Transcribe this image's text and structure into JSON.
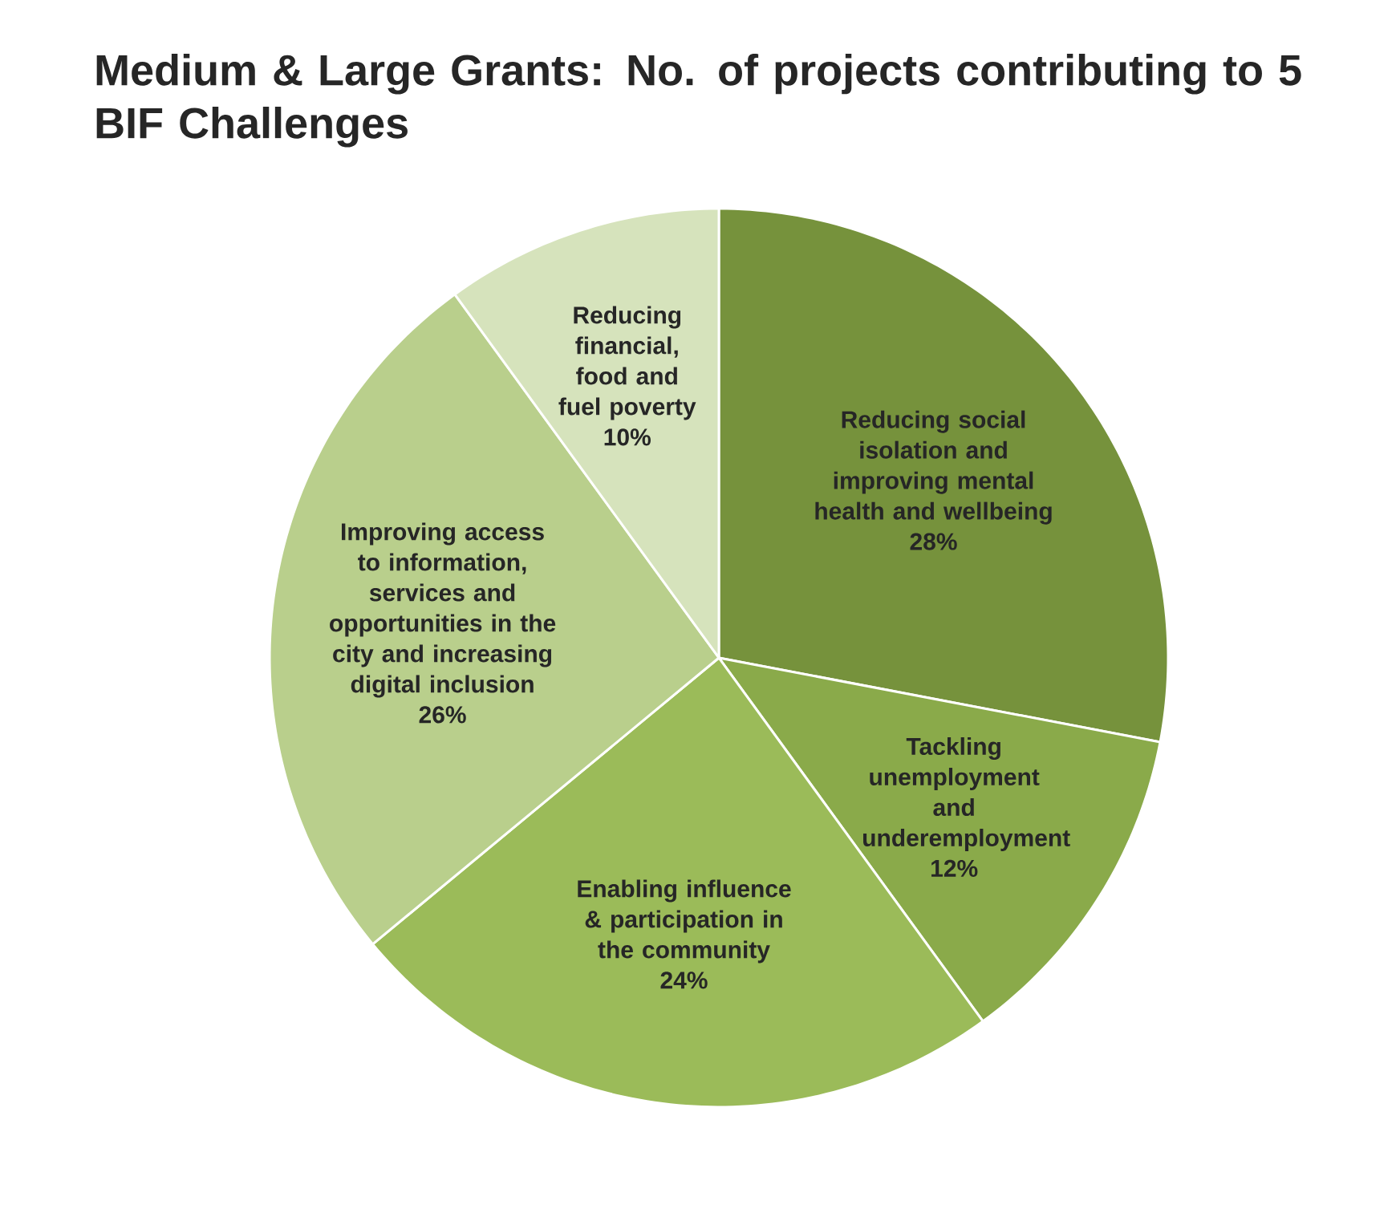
{
  "chart_data": {
    "type": "pie",
    "title": "Medium & Large Grants: No. of projects contributing to 5 BIF Challenges",
    "categories": [
      "Reducing social isolation and improving mental health and wellbeing",
      "Tackling unemployment and underemployment",
      "Enabling influence & participation in the community",
      "Improving access to information, services and opportunities in the city and increasing digital inclusion",
      "Reducing financial, food and fuel poverty"
    ],
    "values": [
      28,
      12,
      24,
      26,
      10
    ],
    "value_labels": [
      "28%",
      "12%",
      "24%",
      "26%",
      "10%"
    ],
    "colors": [
      "#76923c",
      "#8aaa4a",
      "#9bbb59",
      "#b9cf8c",
      "#d6e3bc"
    ]
  }
}
